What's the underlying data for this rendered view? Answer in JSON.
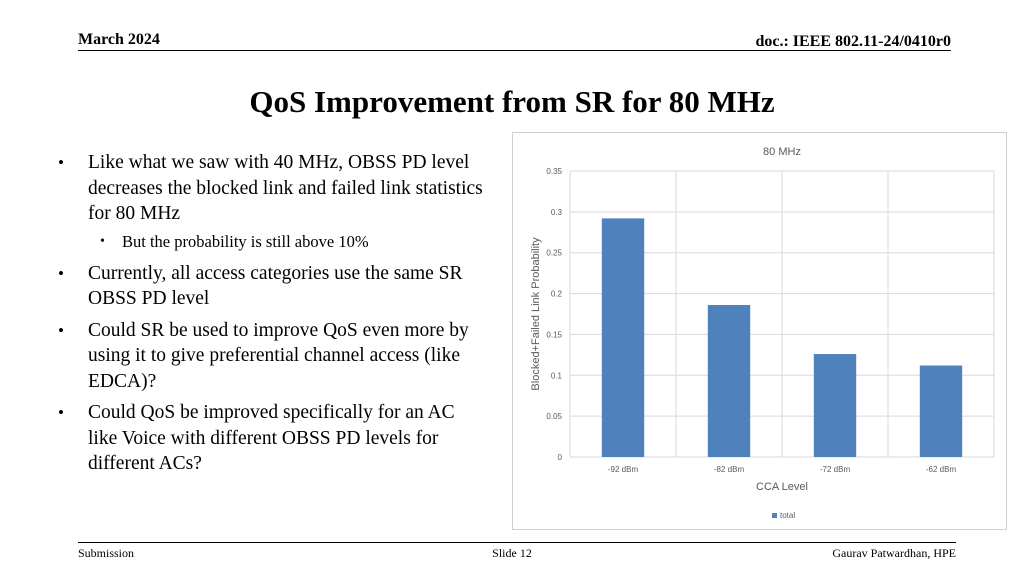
{
  "header": {
    "date": "March 2024",
    "doc": "doc.: IEEE 802.11-24/0410r0"
  },
  "slide": {
    "title": "QoS Improvement from SR for 80 MHz",
    "bullets": [
      {
        "level": 1,
        "text": "Like what we saw with 40 MHz, OBSS PD level decreases the blocked link and failed link statistics for 80 MHz"
      },
      {
        "level": 2,
        "text": "But the probability is still above 10%"
      },
      {
        "level": 1,
        "text": "Currently, all access categories use the same SR OBSS PD level"
      },
      {
        "level": 1,
        "text": "Could SR be used to improve QoS even more by using it to give preferential channel access (like EDCA)?"
      },
      {
        "level": 1,
        "text": "Could QoS be improved specifically for an AC like Voice with different OBSS PD levels for different ACs?"
      }
    ]
  },
  "chart_data": {
    "type": "bar",
    "title": "80 MHz",
    "xlabel": "CCA Level",
    "ylabel": "Blocked+Failed Link Probability",
    "categories": [
      "-92 dBm",
      "-82 dBm",
      "-72 dBm",
      "-62 dBm"
    ],
    "series": [
      {
        "name": "total",
        "values": [
          0.292,
          0.186,
          0.126,
          0.112
        ],
        "color": "#4f81bd"
      }
    ],
    "ylim": [
      0,
      0.35
    ],
    "yticks": [
      "0",
      "0.05",
      "0.1",
      "0.15",
      "0.2",
      "0.25",
      "0.3",
      "0.35"
    ],
    "grid": true,
    "legend": "bottom"
  },
  "footer": {
    "left": "Submission",
    "center": "Slide 12",
    "right": "Gaurav Patwardhan, HPE"
  }
}
